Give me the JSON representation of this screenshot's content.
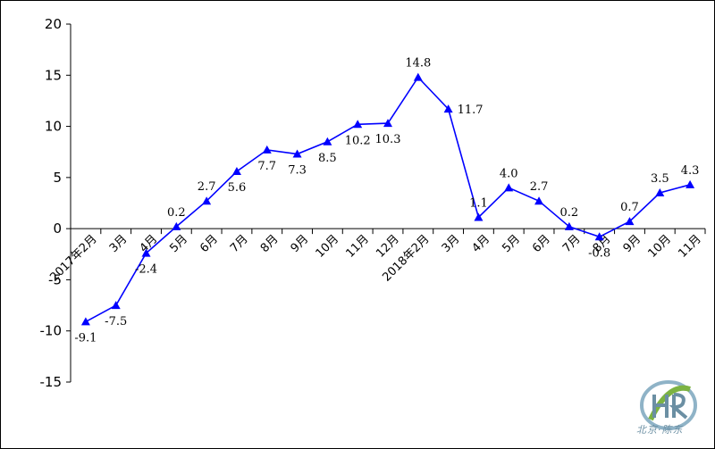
{
  "chart_data": {
    "type": "line",
    "categories": [
      "2017年2月",
      "3月",
      "4月",
      "5月",
      "6月",
      "7月",
      "8月",
      "9月",
      "10月",
      "11月",
      "12月",
      "2018年2月",
      "3月",
      "4月",
      "5月",
      "6月",
      "7月",
      "8月",
      "9月",
      "10月",
      "11月"
    ],
    "series": [
      {
        "values": [
          -9.1,
          -7.5,
          -2.4,
          0.2,
          2.7,
          5.6,
          7.7,
          7.3,
          8.5,
          10.2,
          10.3,
          14.8,
          11.7,
          1.1,
          4.0,
          2.7,
          0.2,
          -0.8,
          0.7,
          3.5,
          4.3
        ],
        "labels": [
          "-9.1",
          "-7.5",
          "-2.4",
          "0.2",
          "2.7",
          "5.6",
          "7.7",
          "7.3",
          "8.5",
          "10.2",
          "10.3",
          "14.8",
          "11.7",
          "1.1",
          "4.0",
          "2.7",
          "0.2",
          "-0.8",
          "0.7",
          "3.5",
          "4.3"
        ],
        "color": "#0000ff",
        "marker": "triangle"
      }
    ],
    "y_ticks": [
      "20",
      "15",
      "10",
      "5",
      "0",
      "-5",
      "-10",
      "-15"
    ],
    "ylim": [
      -15,
      20
    ],
    "grid": false,
    "legend": "none"
  },
  "watermark": {
    "text": "北京·陈东",
    "color": "#6b8fa3",
    "accent": "#7cb342"
  }
}
